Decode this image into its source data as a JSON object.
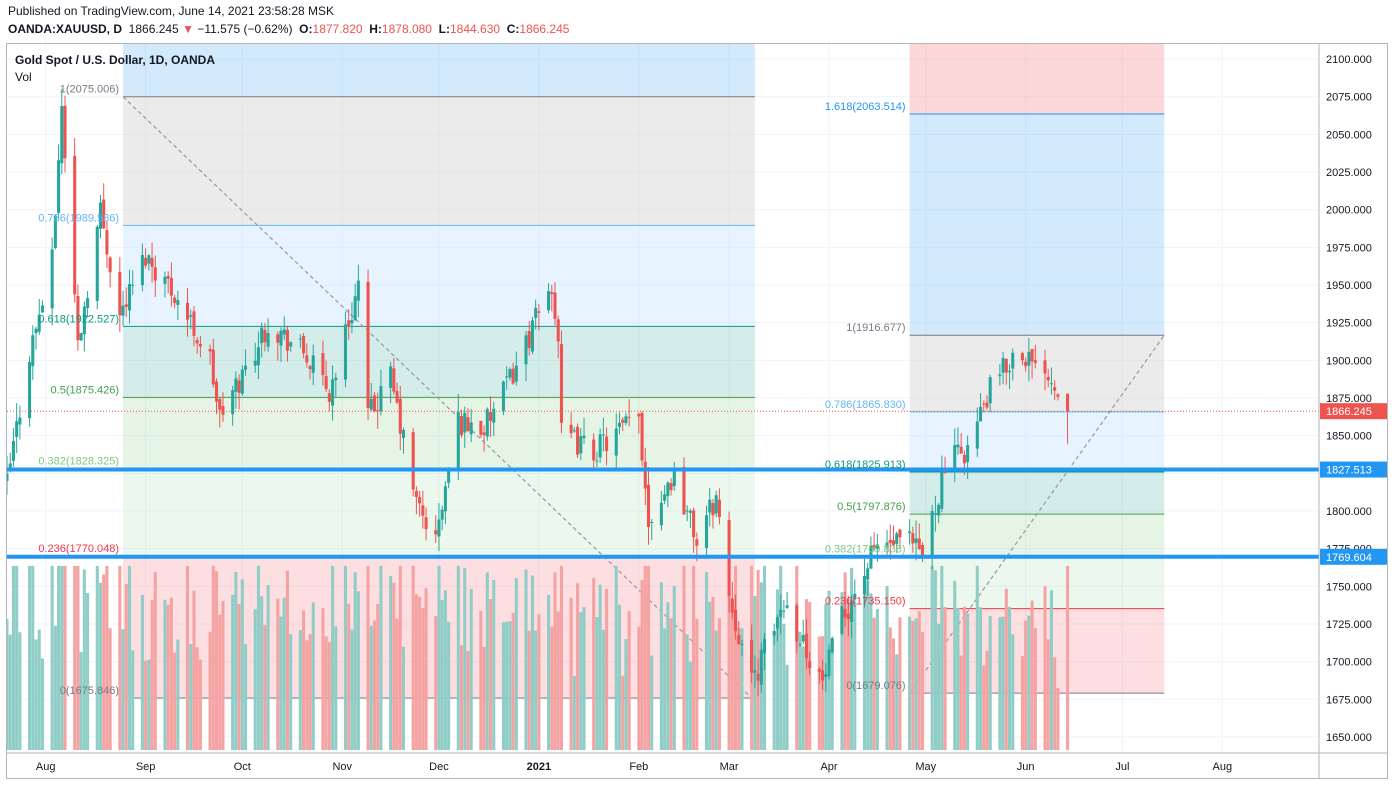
{
  "header": {
    "published": "Published on TradingView.com, June 14, 2021 23:58:28 MSK",
    "symbol": "OANDA:XAUUSD, D",
    "last": "1866.245",
    "change": "−11.575 (−0.62%)",
    "o_label": "O:",
    "o_value": "1877.820",
    "h_label": "H:",
    "h_value": "1878.080",
    "l_label": "L:",
    "l_value": "1844.630",
    "c_label": "C:",
    "c_value": "1866.245"
  },
  "legend": {
    "title": "Gold Spot / U.S. Dollar, 1D, OANDA",
    "volume": "Vol"
  },
  "colors": {
    "up": "#26a69a",
    "down": "#ef5350",
    "vol_up": "#8fcdc6",
    "vol_down": "#f5a3a2",
    "support": "#2196f3",
    "price_line": "#ef5350"
  },
  "chart_data": {
    "type": "candlestick",
    "symbol": "OANDA:XAUUSD",
    "interval": "1D",
    "y_axis": {
      "min": 1640,
      "max": 2110,
      "ticks": [
        1650,
        1675,
        1700,
        1725,
        1750,
        1775,
        1800,
        1825,
        1850,
        1875,
        1900,
        1925,
        1950,
        1975,
        2000,
        2025,
        2050,
        2075,
        2100
      ],
      "tick_labels": [
        "1650.000",
        "1675.000",
        "1700.000",
        "1725.000",
        "1750.000",
        "1775.000",
        "1800.000",
        "1825.000",
        "1850.000",
        "1875.000",
        "1900.000",
        "1925.000",
        "1950.000",
        "1975.000",
        "2000.000",
        "2025.000",
        "2050.000",
        "2075.000",
        "2100.000"
      ]
    },
    "x_axis": {
      "start": "2020-07-20",
      "end": "2021-08-31",
      "ticks": [
        {
          "date": "2020-08-01",
          "label": "Aug",
          "bold": false
        },
        {
          "date": "2020-09-01",
          "label": "Sep",
          "bold": false
        },
        {
          "date": "2020-10-01",
          "label": "Oct",
          "bold": false
        },
        {
          "date": "2020-11-01",
          "label": "Nov",
          "bold": false
        },
        {
          "date": "2020-12-01",
          "label": "Dec",
          "bold": false
        },
        {
          "date": "2021-01-01",
          "label": "2021",
          "bold": true
        },
        {
          "date": "2021-02-01",
          "label": "Feb",
          "bold": false
        },
        {
          "date": "2021-03-01",
          "label": "Mar",
          "bold": false
        },
        {
          "date": "2021-04-01",
          "label": "Apr",
          "bold": false
        },
        {
          "date": "2021-05-01",
          "label": "May",
          "bold": false
        },
        {
          "date": "2021-06-01",
          "label": "Jun",
          "bold": false
        },
        {
          "date": "2021-07-01",
          "label": "Jul",
          "bold": false
        },
        {
          "date": "2021-08-01",
          "label": "Aug",
          "bold": false
        }
      ]
    },
    "anchor_prices": [
      [
        "2020-07-20",
        1818
      ],
      [
        "2020-07-27",
        1905
      ],
      [
        "2020-08-03",
        1965
      ],
      [
        "2020-08-06",
        2069
      ],
      [
        "2020-08-11",
        1911
      ],
      [
        "2020-08-18",
        2000
      ],
      [
        "2020-08-24",
        1930
      ],
      [
        "2020-09-01",
        1970
      ],
      [
        "2020-09-10",
        1945
      ],
      [
        "2020-09-21",
        1900
      ],
      [
        "2020-09-24",
        1862
      ],
      [
        "2020-10-01",
        1890
      ],
      [
        "2020-10-09",
        1925
      ],
      [
        "2020-10-20",
        1905
      ],
      [
        "2020-10-28",
        1878
      ],
      [
        "2020-11-06",
        1950
      ],
      [
        "2020-11-09",
        1862
      ],
      [
        "2020-11-16",
        1888
      ],
      [
        "2020-11-24",
        1805
      ],
      [
        "2020-11-30",
        1780
      ],
      [
        "2020-12-07",
        1860
      ],
      [
        "2020-12-15",
        1855
      ],
      [
        "2020-12-21",
        1878
      ],
      [
        "2021-01-05",
        1950
      ],
      [
        "2021-01-07",
        1915
      ],
      [
        "2021-01-08",
        1850
      ],
      [
        "2021-01-18",
        1840
      ],
      [
        "2021-02-01",
        1862
      ],
      [
        "2021-02-04",
        1795
      ],
      [
        "2021-02-12",
        1825
      ],
      [
        "2021-02-19",
        1780
      ],
      [
        "2021-02-25",
        1810
      ],
      [
        "2021-03-01",
        1745
      ],
      [
        "2021-03-08",
        1685
      ],
      [
        "2021-03-18",
        1740
      ],
      [
        "2021-03-30",
        1686
      ],
      [
        "2021-04-05",
        1728
      ],
      [
        "2021-04-16",
        1778
      ],
      [
        "2021-04-26",
        1778
      ],
      [
        "2021-04-30",
        1770
      ],
      [
        "2021-05-07",
        1830
      ],
      [
        "2021-05-14",
        1842
      ],
      [
        "2021-05-21",
        1880
      ],
      [
        "2021-05-28",
        1903
      ],
      [
        "2021-06-01",
        1905
      ],
      [
        "2021-06-04",
        1892
      ],
      [
        "2021-06-07",
        1898
      ],
      [
        "2021-06-11",
        1878
      ],
      [
        "2021-06-14",
        1866.245
      ]
    ],
    "last_candle": {
      "date": "2021-06-14",
      "open": 1877.82,
      "high": 1878.08,
      "low": 1844.63,
      "close": 1866.245
    },
    "last_price_label": "1866.245",
    "fib_retracements": [
      {
        "range": [
          "2020-08-25",
          "2021-03-09"
        ],
        "trend_line": [
          [
            "2020-08-25",
            2075.006
          ],
          [
            "2021-03-08",
            1675.846
          ]
        ],
        "levels": [
          {
            "ratio": 1,
            "price": 2075.006,
            "label": "1(2075.006)",
            "color": "#787b86",
            "fill": "rgba(210,210,210,0.45)"
          },
          {
            "ratio": 0.786,
            "price": 1989.586,
            "label": "0.786(1989.586)",
            "color": "#64b5f6",
            "fill": "rgba(187,222,251,0.35)"
          },
          {
            "ratio": 0.618,
            "price": 1922.527,
            "label": "0.618(1922.527)",
            "color": "#089981",
            "fill": "rgba(0,150,136,0.17)"
          },
          {
            "ratio": 0.5,
            "price": 1875.426,
            "label": "0.5(1875.426)",
            "color": "#43a047",
            "fill": "rgba(76,175,80,0.14)"
          },
          {
            "ratio": 0.382,
            "price": 1828.325,
            "label": "0.382(1828.325)",
            "color": "#81c784",
            "fill": "rgba(129,199,132,0.15)"
          },
          {
            "ratio": 0.236,
            "price": 1770.048,
            "label": "0.236(1770.048)",
            "color": "#f23645",
            "fill": "rgba(242,54,69,0.16)"
          },
          {
            "ratio": 0,
            "price": 1675.846,
            "label": "0(1675.846)",
            "color": "#787b86"
          }
        ],
        "top_fill": "rgba(33,150,243,0.2)"
      },
      {
        "range": [
          "2021-04-26",
          "2021-07-14"
        ],
        "trend_line": [
          [
            "2021-04-26",
            1679.076
          ],
          [
            "2021-07-14",
            1916.677
          ]
        ],
        "levels": [
          {
            "ratio": 1.618,
            "price": 2063.514,
            "label": "1.618(2063.514)",
            "color": "#2196f3",
            "fill": "rgba(33,150,243,0.2)"
          },
          {
            "ratio": 1,
            "price": 1916.677,
            "label": "1(1916.677)",
            "color": "#787b86",
            "fill": "rgba(210,210,210,0.45)"
          },
          {
            "ratio": 0.786,
            "price": 1865.83,
            "label": "0.786(1865.830)",
            "color": "#64b5f6",
            "fill": "rgba(187,222,251,0.35)"
          },
          {
            "ratio": 0.618,
            "price": 1825.913,
            "label": "0.618(1825.913)",
            "color": "#089981",
            "fill": "rgba(0,150,136,0.17)"
          },
          {
            "ratio": 0.5,
            "price": 1797.876,
            "label": "0.5(1797.876)",
            "color": "#43a047",
            "fill": "rgba(76,175,80,0.14)"
          },
          {
            "ratio": 0.382,
            "price": 1769.838,
            "label": "0.382(1769.838)",
            "color": "#81c784",
            "fill": "rgba(129,199,132,0.15)"
          },
          {
            "ratio": 0.236,
            "price": 1735.15,
            "label": "0.236(1735.150)",
            "color": "#f23645",
            "fill": "rgba(242,54,69,0.16)"
          },
          {
            "ratio": 0,
            "price": 1679.076,
            "label": "0(1679.076)",
            "color": "#787b86"
          }
        ],
        "top_fill": "rgba(242,54,69,0.2)"
      }
    ],
    "horizontal_lines": [
      {
        "price": 1827.513,
        "label": "1827.513",
        "color": "#2196f3"
      },
      {
        "price": 1769.604,
        "label": "1769.604",
        "color": "#2196f3"
      }
    ],
    "volume": {
      "visible": true,
      "scale_max_fraction": 0.26
    }
  }
}
